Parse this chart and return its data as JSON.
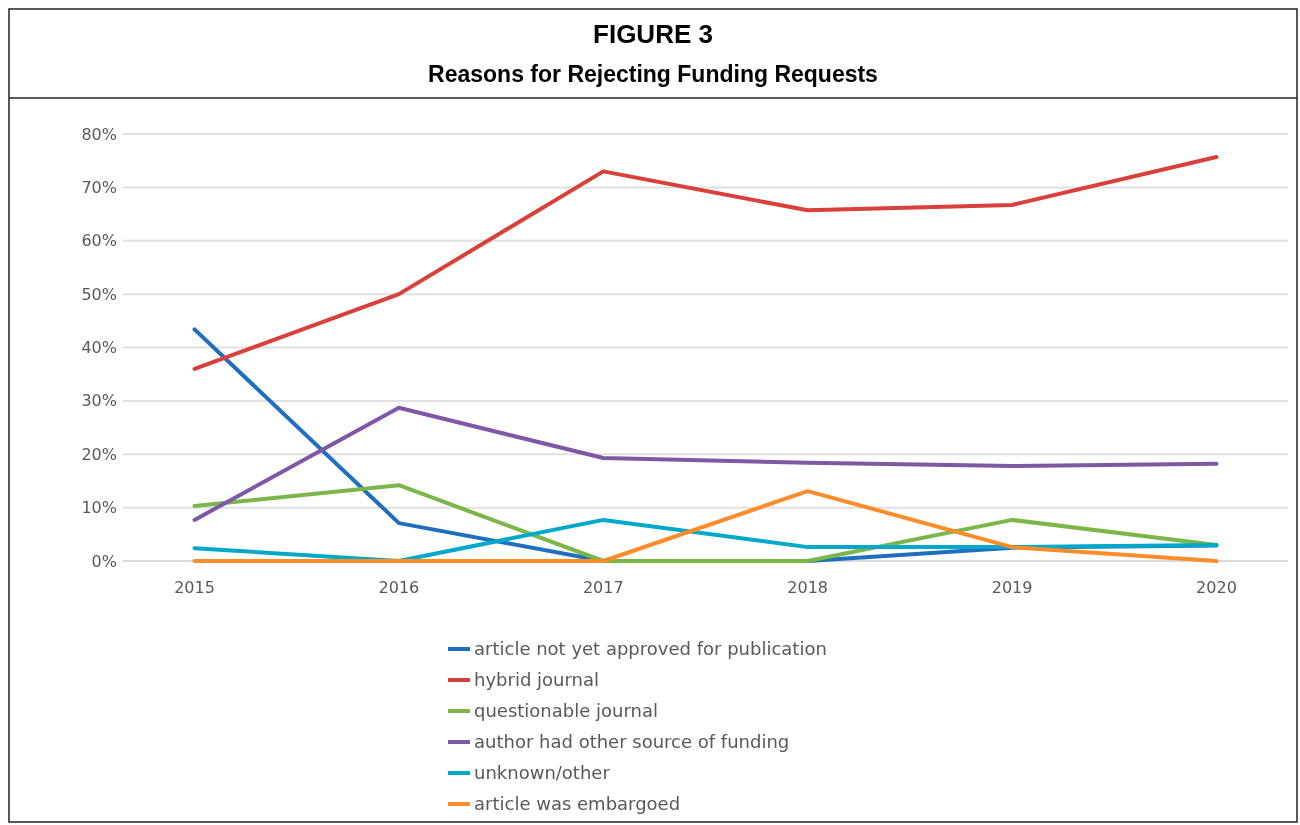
{
  "chart_data": {
    "type": "line",
    "title": "FIGURE 3",
    "subtitle": "Reasons for Rejecting Funding Requests",
    "categories": [
      "2015",
      "2016",
      "2017",
      "2018",
      "2019",
      "2020"
    ],
    "series": [
      {
        "name": "article not yet approved for publication",
        "color": "#1f6fbf",
        "values": [
          43.4,
          7.1,
          0,
          0,
          2.5,
          2.9
        ]
      },
      {
        "name": "hybrid journal",
        "color": "#d9403a",
        "values": [
          36,
          50,
          73,
          65.7,
          66.7,
          75.7
        ]
      },
      {
        "name": "questionable journal",
        "color": "#7ab648",
        "values": [
          10.3,
          14.2,
          0,
          0,
          7.7,
          3
        ]
      },
      {
        "name": "author had other source of funding",
        "color": "#7e57a6",
        "values": [
          7.7,
          28.7,
          19.3,
          18.4,
          17.8,
          18.2
        ]
      },
      {
        "name": "unknown/other",
        "color": "#00a9c9",
        "values": [
          2.4,
          0,
          7.7,
          2.6,
          2.6,
          3
        ]
      },
      {
        "name": "article was embargoed",
        "color": "#ff8c2a",
        "values": [
          0,
          0,
          0,
          13.1,
          2.6,
          0
        ]
      }
    ],
    "ylim": [
      0,
      80
    ],
    "yticks": [
      {
        "value": 0,
        "label": "0%"
      },
      {
        "value": 10,
        "label": "10%"
      },
      {
        "value": 20,
        "label": "20%"
      },
      {
        "value": 30,
        "label": "30%"
      },
      {
        "value": 40,
        "label": "40%"
      },
      {
        "value": 50,
        "label": "50%"
      },
      {
        "value": 60,
        "label": "60%"
      },
      {
        "value": 70,
        "label": "70%"
      },
      {
        "value": 80,
        "label": "80%"
      }
    ],
    "grid": "y",
    "legend": "bottom",
    "marker": "none",
    "line_style": "solid"
  }
}
